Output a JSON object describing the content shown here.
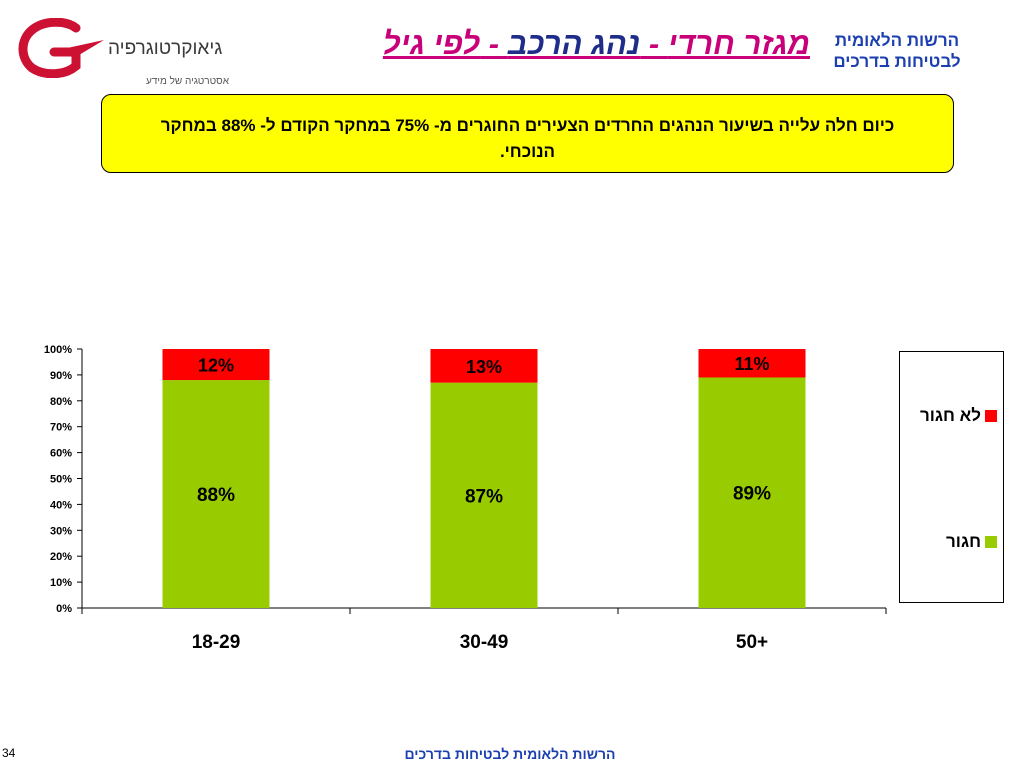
{
  "header": {
    "logo_name": "גיאוקרטוגרפיה",
    "logo_tagline": "אסטרטגיה של מידע",
    "title_part1": "מגזר חרדי",
    "title_sep1": " - ",
    "title_part2": "נהג הרכב",
    "title_sep2": " - ",
    "title_part3": "לפי גיל",
    "org_line1": "הרשות הלאומית",
    "org_line2": "לבטיחות בדרכים"
  },
  "callout": {
    "text": "כיום חלה עלייה בשיעור הנהגים החרדים הצעירים החוגרים מ- 75% במחקר הקודם ל- 88% במחקר הנוכחי."
  },
  "chart_data": {
    "type": "bar",
    "stacked": true,
    "categories": [
      "18-29",
      "30-49",
      "50+"
    ],
    "series": [
      {
        "name": "חגור",
        "values": [
          88,
          87,
          89
        ],
        "labels": [
          "88%",
          "87%",
          "89%"
        ],
        "color": "#99cc00"
      },
      {
        "name": "לא חגור",
        "values": [
          12,
          13,
          11
        ],
        "labels": [
          "12%",
          "13%",
          "11%"
        ],
        "color": "#ff0000"
      }
    ],
    "y_ticks": [
      "0%",
      "10%",
      "20%",
      "30%",
      "40%",
      "50%",
      "60%",
      "70%",
      "80%",
      "90%",
      "100%"
    ],
    "ylim": [
      0,
      100
    ],
    "grid": false,
    "legend_position": "right"
  },
  "footer": {
    "text": "הרשות הלאומית לבטיחות בדרכים",
    "page_number": "34"
  }
}
